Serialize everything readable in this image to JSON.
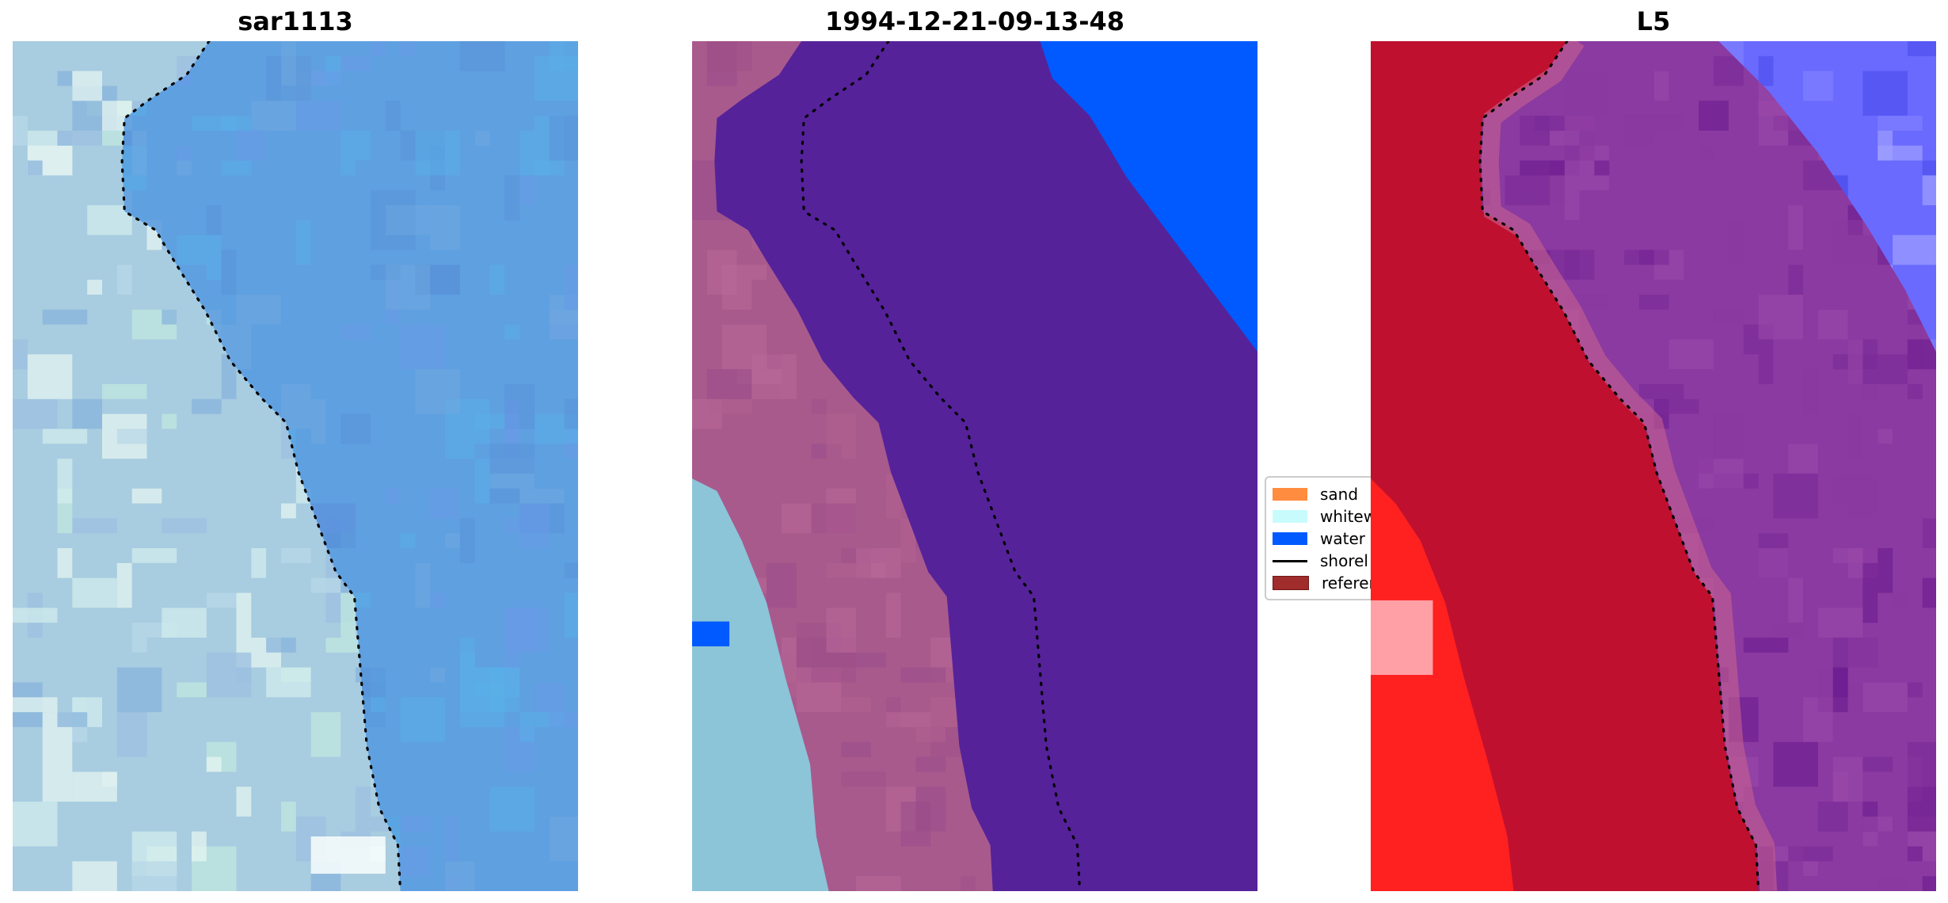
{
  "chart_data": [
    {
      "type": "image",
      "title": "sar1113",
      "overlay": "shoreline (dotted black)"
    },
    {
      "type": "image",
      "title": "1994-12-21-09-13-48",
      "overlay": "shoreline (dotted black)",
      "classes": [
        "sand",
        "whitewater",
        "water"
      ]
    },
    {
      "type": "image",
      "title": "L5",
      "overlay": "shoreline (dotted black)"
    }
  ],
  "titles": [
    "sar1113",
    "1994-12-21-09-13-48",
    "L5"
  ],
  "legend": {
    "placement": "center (between panels 2 and 3, partially hidden)",
    "items": [
      {
        "label": "sand",
        "color": "#ff8c3f",
        "kind": "patch"
      },
      {
        "label": "whitew",
        "color": "#c8fcfc",
        "kind": "patch"
      },
      {
        "label": "water",
        "color": "#005aff",
        "kind": "patch"
      },
      {
        "label": "shorel",
        "color": "#000000",
        "kind": "line"
      },
      {
        "label": "referen",
        "color": "#a02c2c",
        "kind": "patch"
      }
    ]
  },
  "colors": {
    "sar_land": "#c8e4e8",
    "sar_water": "#5fa0e0",
    "class_sand": "#a85a8c",
    "class_ocean": "#55229a",
    "class_water": "#005aff",
    "class_white": "#8cc4d8",
    "l5_land": "#c0102f",
    "l5_water": "#8a3aa0",
    "l5_blue": "#6a6aff",
    "l5_bright": "#ff2020"
  }
}
